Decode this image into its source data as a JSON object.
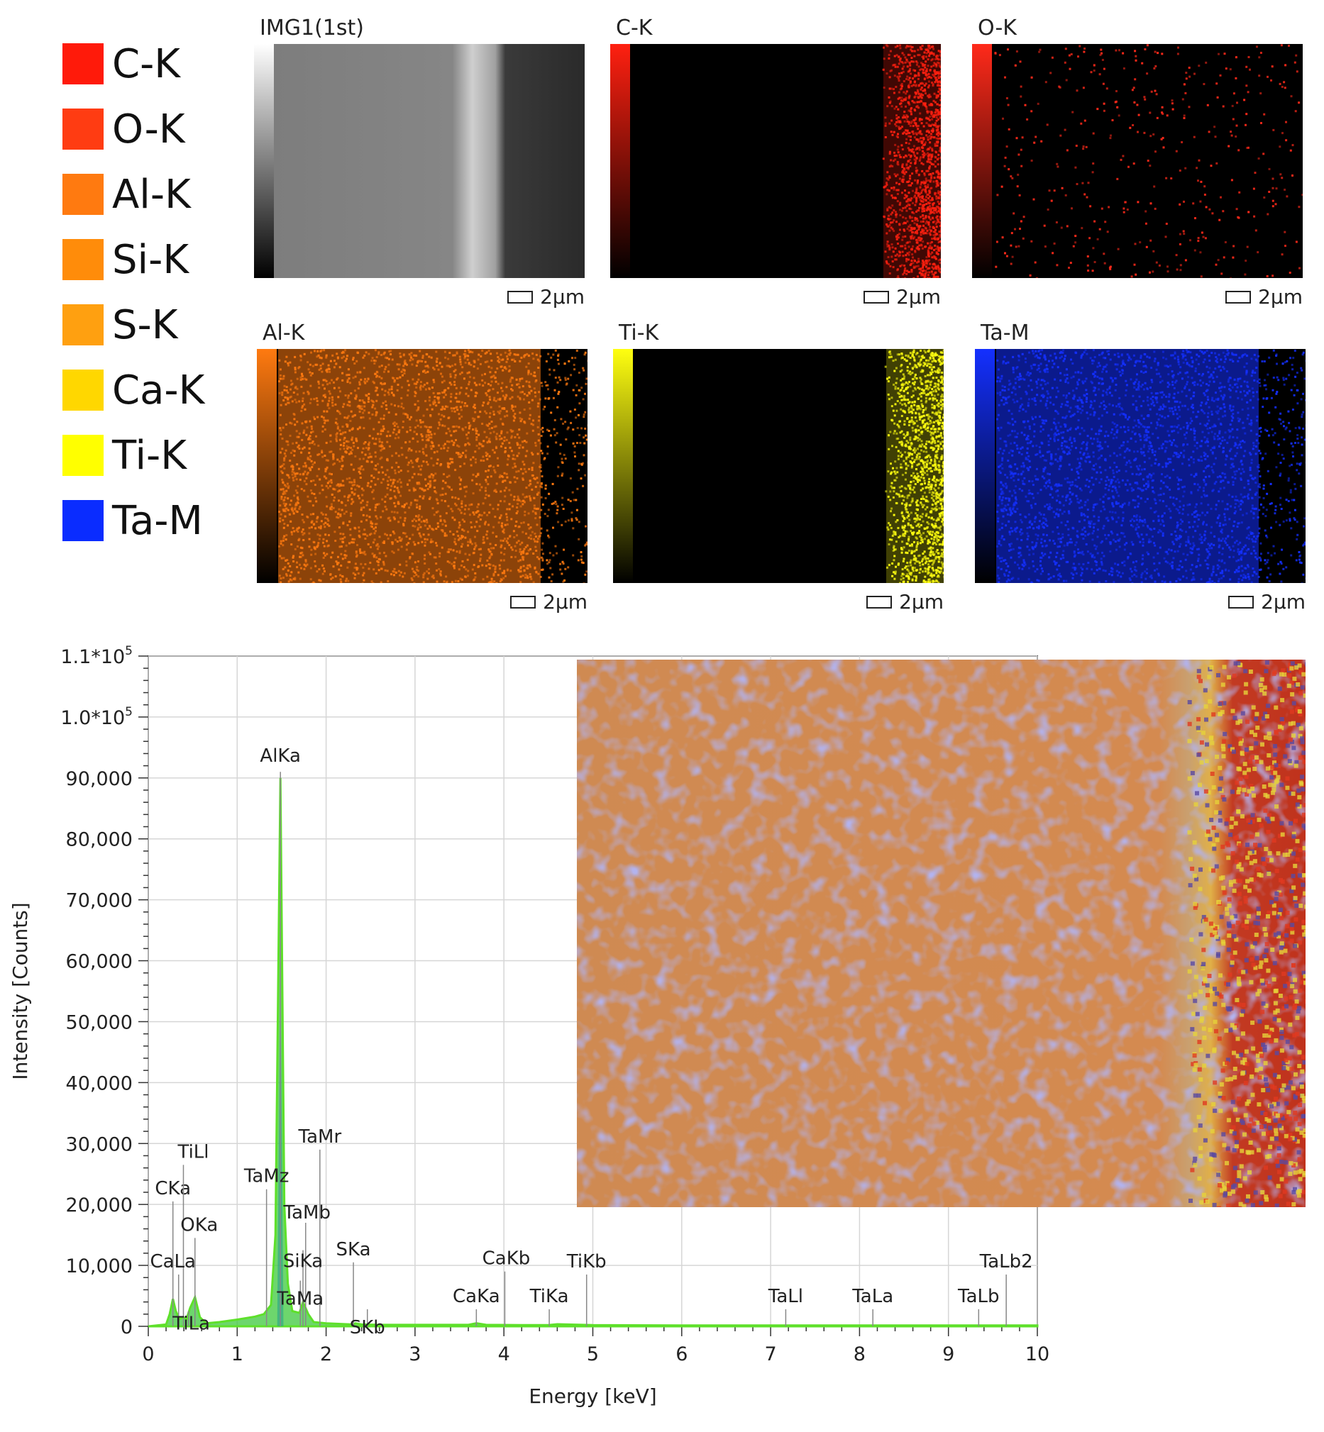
{
  "legend": [
    {
      "label": "C-K",
      "color": "#ff1a0a"
    },
    {
      "label": "O-K",
      "color": "#ff3c12"
    },
    {
      "label": "Al-K",
      "color": "#ff7a10"
    },
    {
      "label": "Si-K",
      "color": "#ff8c0a"
    },
    {
      "label": "S-K",
      "color": "#ffa010"
    },
    {
      "label": "Ca-K",
      "color": "#ffd700"
    },
    {
      "label": "Ti-K",
      "color": "#ffff00"
    },
    {
      "label": "Ta-M",
      "color": "#0a2cff"
    }
  ],
  "maps": [
    {
      "title": "IMG1(1st)",
      "scale": "2μm",
      "color": "#ffffff",
      "kind": "sem"
    },
    {
      "title": "C-K",
      "scale": "2μm",
      "color": "#ff2010",
      "kind": "edge"
    },
    {
      "title": "O-K",
      "scale": "2μm",
      "color": "#ff2a1a",
      "kind": "sparse"
    },
    {
      "title": "Al-K",
      "scale": "2μm",
      "color": "#ff7a10",
      "kind": "dense"
    },
    {
      "title": "Ti-K",
      "scale": "2μm",
      "color": "#ffff10",
      "kind": "edge"
    },
    {
      "title": "Ta-M",
      "scale": "2μm",
      "color": "#1430ff",
      "kind": "dense"
    }
  ],
  "chart_data": {
    "type": "line",
    "xlabel": "Energy [keV]",
    "ylabel": "Intensity [Counts]",
    "xlim": [
      0,
      10
    ],
    "ylim": [
      0,
      110000
    ],
    "xticks": [
      "0",
      "1",
      "2",
      "3",
      "4",
      "5",
      "6",
      "7",
      "8",
      "9",
      "10"
    ],
    "yticks": [
      {
        "value": 0,
        "label": "0"
      },
      {
        "value": 10000,
        "label": "10,000"
      },
      {
        "value": 20000,
        "label": "20,000"
      },
      {
        "value": 30000,
        "label": "30,000"
      },
      {
        "value": 40000,
        "label": "40,000"
      },
      {
        "value": 50000,
        "label": "50,000"
      },
      {
        "value": 60000,
        "label": "60,000"
      },
      {
        "value": 70000,
        "label": "70,000"
      },
      {
        "value": 80000,
        "label": "80,000"
      },
      {
        "value": 90000,
        "label": "90,000"
      },
      {
        "value": 100000,
        "label": "1.0*10^5"
      },
      {
        "value": 110000,
        "label": "1.1*10^5"
      }
    ],
    "grid": true,
    "spectrum": {
      "x": [
        0,
        0.2,
        0.24,
        0.277,
        0.31,
        0.35,
        0.395,
        0.43,
        0.47,
        0.525,
        0.58,
        0.65,
        0.8,
        1.0,
        1.2,
        1.3,
        1.38,
        1.43,
        1.486,
        1.53,
        1.57,
        1.62,
        1.7,
        1.74,
        1.8,
        1.86,
        2.0,
        2.3,
        2.33,
        2.4,
        2.6,
        3.0,
        3.6,
        3.69,
        3.8,
        4.2,
        4.5,
        4.6,
        5.0,
        6.0,
        7.0,
        8.0,
        9.0,
        10.0
      ],
      "y": [
        0,
        300,
        2000,
        4500,
        2500,
        1200,
        1500,
        1200,
        3000,
        4800,
        1500,
        500,
        700,
        1100,
        1600,
        2000,
        3500,
        15000,
        90000,
        20000,
        7000,
        2500,
        2200,
        4000,
        2000,
        700,
        500,
        300,
        500,
        300,
        250,
        250,
        250,
        500,
        250,
        200,
        200,
        350,
        200,
        150,
        150,
        150,
        150,
        150
      ]
    },
    "peaks": [
      {
        "label": "CKa",
        "x": 0.277,
        "top": 20500
      },
      {
        "label": "TiLl",
        "x": 0.395,
        "top": 26500
      },
      {
        "label": "OKa",
        "x": 0.525,
        "top": 14500
      },
      {
        "label": "CaLa",
        "x": 0.341,
        "top": 8500
      },
      {
        "label": "TiLa",
        "x": 0.452,
        "top": 2500
      },
      {
        "label": "AlKa",
        "x": 1.486,
        "top": 91000
      },
      {
        "label": "TaMz",
        "x": 1.33,
        "top": 22500
      },
      {
        "label": "TaMr",
        "x": 1.93,
        "top": 29000
      },
      {
        "label": "TaMb",
        "x": 1.77,
        "top": 17000
      },
      {
        "label": "SiKa",
        "x": 1.74,
        "top": 12500
      },
      {
        "label": "TaMa",
        "x": 1.71,
        "top": 7500
      },
      {
        "label": "SKa",
        "x": 2.307,
        "top": 10500
      },
      {
        "label": "SKb",
        "x": 2.464,
        "top": 2800
      },
      {
        "label": "CaKa",
        "x": 3.69,
        "top": 2800
      },
      {
        "label": "CaKb",
        "x": 4.01,
        "top": 9000
      },
      {
        "label": "TiKa",
        "x": 4.51,
        "top": 2800
      },
      {
        "label": "TiKb",
        "x": 4.93,
        "top": 8500
      },
      {
        "label": "TaLl",
        "x": 7.17,
        "top": 2800
      },
      {
        "label": "TaLa",
        "x": 8.15,
        "top": 2800
      },
      {
        "label": "TaLb",
        "x": 9.34,
        "top": 2800
      },
      {
        "label": "TaLb2",
        "x": 9.65,
        "top": 8500
      }
    ]
  }
}
